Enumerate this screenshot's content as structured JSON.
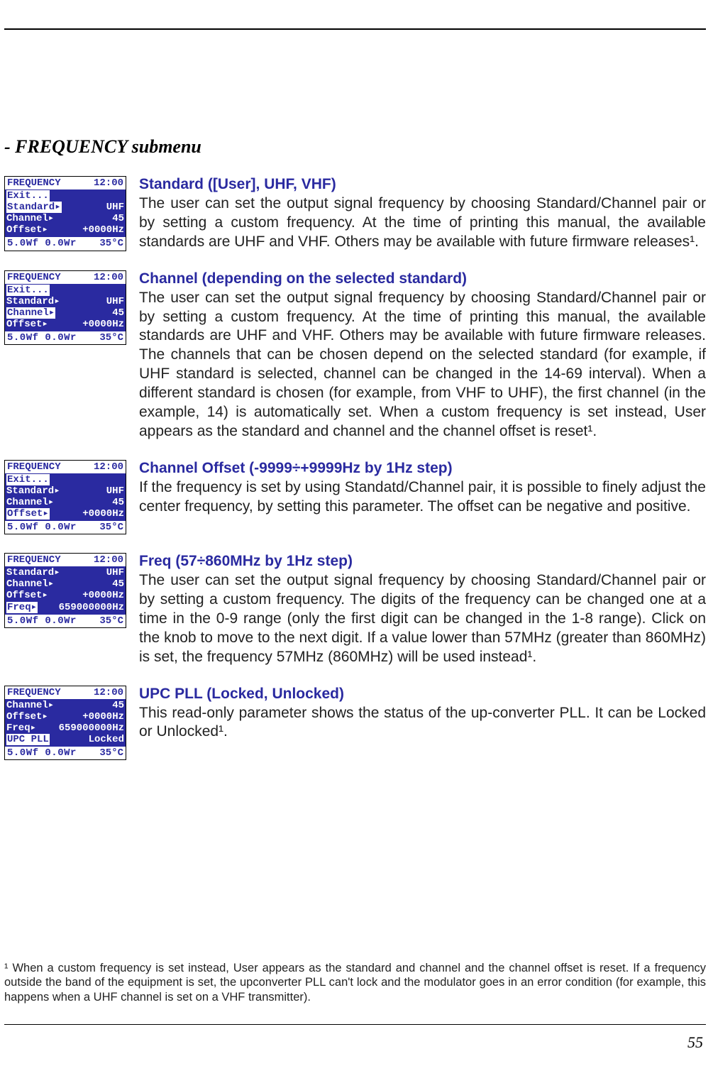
{
  "section_title": "- FREQUENCY submenu",
  "page_number": "55",
  "footnote": "¹ When a custom frequency is set instead, User appears as the standard and channel and the channel offset is reset. If a frequency outside the band of the equipment is set, the upconverter PLL can't lock and the modulator goes in an error condition (for example, this happens when a UHF channel is set on a VHF transmitter).",
  "lcd_common": {
    "title": "FREQUENCY",
    "time": "12:00",
    "footer_left": "5.0Wf",
    "footer_mid": "0.0Wr",
    "footer_right": "35°C"
  },
  "entries": [
    {
      "heading": "Standard ([User], UHF, VHF)",
      "body": "The user can set the output signal frequency by choosing Standard/Channel pair or by setting a custom frequency. At the time of printing this manual, the available standards are UHF and VHF. Others may be available with future firmware releases¹.",
      "lcd_rows": [
        {
          "left": "Exit...",
          "right": "",
          "hl_left": true
        },
        {
          "left": "Standard▸",
          "right": "UHF",
          "hl_left": true
        },
        {
          "left": "Channel▸",
          "right": "45",
          "hl_left": false
        },
        {
          "left": "Offset▸",
          "right": "+0000Hz",
          "hl_left": false
        }
      ]
    },
    {
      "heading": "Channel (depending on the selected standard)",
      "body": "The user can set the output signal frequency by choosing Standard/Channel pair or by setting a custom frequency. At the time of printing this manual, the available standards are UHF and VHF. Others may be available with future firmware releases. The channels that can be chosen depend on the selected standard (for example, if UHF standard is selected, channel can be changed in the 14-69 interval). When a different standard is chosen (for example, from VHF to UHF), the first channel (in the example, 14) is automatically set. When a custom frequency is set instead, User appears as the standard and channel and the channel offset is reset¹.",
      "lcd_rows": [
        {
          "left": "Exit...",
          "right": "",
          "hl_left": true
        },
        {
          "left": "Standard▸",
          "right": "UHF",
          "hl_left": false
        },
        {
          "left": "Channel▸",
          "right": "45",
          "hl_left": true
        },
        {
          "left": "Offset▸",
          "right": "+0000Hz",
          "hl_left": false
        }
      ]
    },
    {
      "heading": "Channel Offset (-9999÷+9999Hz by 1Hz step)",
      "body": "If the frequency is set by using Standatd/Channel pair, it is possible to finely adjust the center frequency, by setting this parameter. The offset can be negative and positive.",
      "lcd_rows": [
        {
          "left": "Exit...",
          "right": "",
          "hl_left": true
        },
        {
          "left": "Standard▸",
          "right": "UHF",
          "hl_left": false
        },
        {
          "left": "Channel▸",
          "right": "45",
          "hl_left": false
        },
        {
          "left": "Offset▸",
          "right": "+0000Hz",
          "hl_left": true
        }
      ]
    },
    {
      "heading": "Freq (57÷860MHz by 1Hz step)",
      "body": "The user can set the output signal frequency by choosing Standard/Channel pair or by setting a custom frequency. The digits of the frequency can be changed one at a time in the 0-9 range (only the first digit can be changed in the 1-8 range). Click on the knob to move to the next digit. If a value lower than 57MHz (greater than 860MHz) is set, the frequency 57MHz (860MHz) will be used instead¹.",
      "lcd_rows": [
        {
          "left": "Standard▸",
          "right": "UHF",
          "hl_left": false
        },
        {
          "left": "Channel▸",
          "right": "45",
          "hl_left": false
        },
        {
          "left": "Offset▸",
          "right": "+0000Hz",
          "hl_left": false
        },
        {
          "left": "Freq▸",
          "right": "659000000Hz",
          "hl_left": true
        }
      ]
    },
    {
      "heading": "UPC PLL (Locked, Unlocked)",
      "body": "This read-only parameter shows the status of the up-converter PLL. It can be Locked or Unlocked¹.",
      "lcd_rows": [
        {
          "left": "Channel▸",
          "right": "45",
          "hl_left": false
        },
        {
          "left": "Offset▸",
          "right": "+0000Hz",
          "hl_left": false
        },
        {
          "left": "Freq▸",
          "right": "659000000Hz",
          "hl_left": false
        },
        {
          "left": "UPC PLL",
          "right": "Locked",
          "hl_left": true
        }
      ]
    }
  ]
}
